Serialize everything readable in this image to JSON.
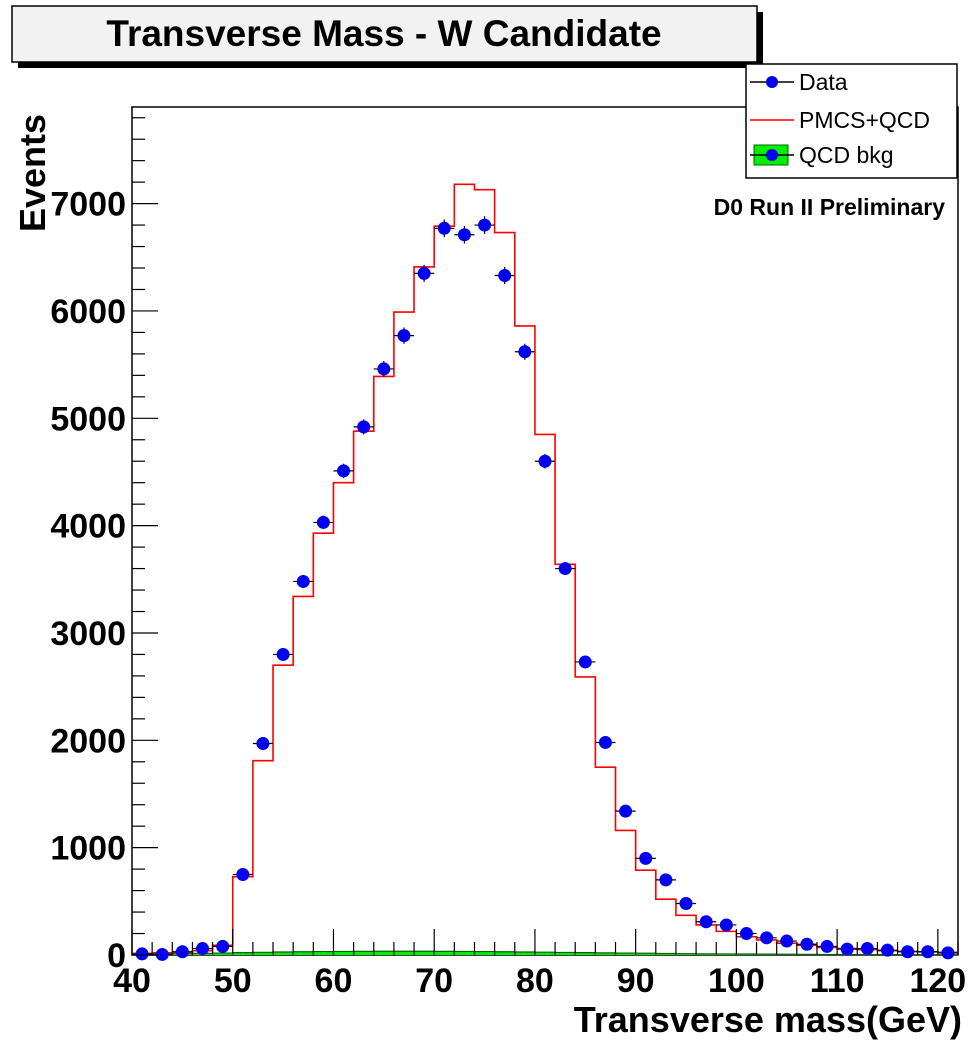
{
  "chart_data": {
    "type": "histogram",
    "title": "Transverse Mass - W Candidate",
    "xlabel": "Transverse mass(GeV)",
    "ylabel": "Events",
    "xlim": [
      40,
      122
    ],
    "ylim": [
      0,
      7900
    ],
    "x_ticks": [
      40,
      50,
      60,
      70,
      80,
      90,
      100,
      110,
      120
    ],
    "y_ticks": [
      0,
      1000,
      2000,
      3000,
      4000,
      5000,
      6000,
      7000
    ],
    "annotation": "D0 Run II Preliminary",
    "legend_position": "top-right",
    "legend": [
      {
        "label": "Data"
      },
      {
        "label": "PMCS+QCD"
      },
      {
        "label": "QCD bkg"
      }
    ],
    "colors": {
      "data": "#0000ee",
      "mc": "#ff0000",
      "bkg_fill": "#00ee00",
      "bkg_line": "#006600"
    },
    "data_points": {
      "x": [
        41,
        43,
        45,
        47,
        49,
        51,
        53,
        55,
        57,
        59,
        61,
        63,
        65,
        67,
        69,
        71,
        73,
        75,
        77,
        79,
        81,
        83,
        85,
        87,
        89,
        91,
        93,
        95,
        97,
        99,
        101,
        103,
        105,
        107,
        109,
        111,
        113,
        115,
        117,
        119,
        121
      ],
      "y": [
        10,
        5,
        30,
        60,
        80,
        750,
        1970,
        2800,
        3480,
        4030,
        4510,
        4920,
        5460,
        5770,
        6350,
        6770,
        6710,
        6800,
        6330,
        5620,
        4600,
        3600,
        2730,
        1980,
        1340,
        900,
        700,
        480,
        310,
        280,
        200,
        160,
        130,
        100,
        80,
        55,
        60,
        45,
        30,
        30,
        20
      ]
    },
    "mc_hist": {
      "bin_edges": [
        40,
        42,
        44,
        46,
        48,
        50,
        52,
        54,
        56,
        58,
        60,
        62,
        64,
        66,
        68,
        70,
        72,
        74,
        76,
        78,
        80,
        82,
        84,
        86,
        88,
        90,
        92,
        94,
        96,
        98,
        100,
        102,
        104,
        106,
        108,
        110,
        112,
        114,
        116,
        118,
        120,
        122
      ],
      "values": [
        15,
        20,
        25,
        40,
        90,
        730,
        1810,
        2700,
        3340,
        3930,
        4400,
        4880,
        5390,
        5990,
        6410,
        6790,
        7180,
        7130,
        6730,
        5860,
        4850,
        3640,
        2590,
        1750,
        1160,
        790,
        520,
        370,
        280,
        220,
        170,
        140,
        110,
        90,
        70,
        60,
        50,
        40,
        35,
        30,
        25
      ]
    },
    "bkg_hist": {
      "bin_edges": [
        40,
        42,
        44,
        46,
        48,
        50,
        52,
        54,
        56,
        58,
        60,
        62,
        64,
        66,
        68,
        70,
        72,
        74,
        76,
        78,
        80,
        82,
        84,
        86,
        88,
        90,
        92,
        94,
        96,
        98,
        100,
        102,
        104,
        106,
        108,
        110,
        112,
        114,
        116,
        118,
        120,
        122
      ],
      "values": [
        5,
        8,
        12,
        15,
        18,
        22,
        25,
        28,
        30,
        32,
        33,
        34,
        35,
        35,
        35,
        34,
        33,
        32,
        30,
        28,
        26,
        24,
        22,
        20,
        18,
        16,
        14,
        12,
        11,
        10,
        9,
        8,
        7,
        6,
        5,
        5,
        4,
        4,
        3,
        3,
        3
      ]
    }
  }
}
